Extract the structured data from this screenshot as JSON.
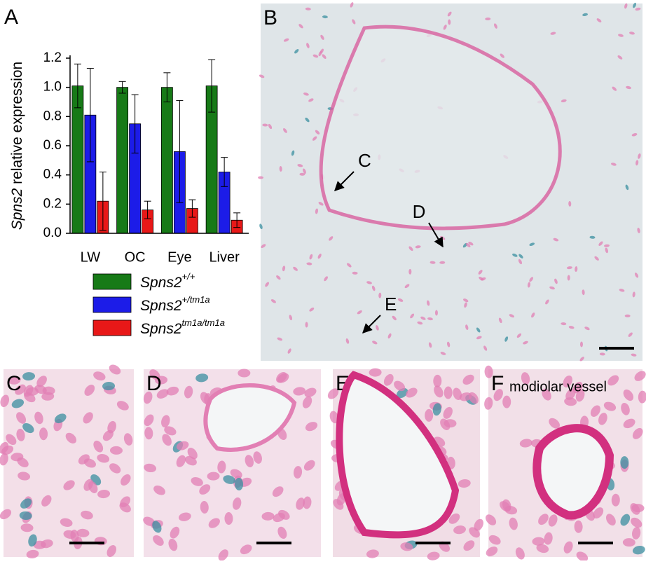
{
  "chart_data": {
    "type": "bar",
    "panel_label": "A",
    "y_label": "Spns2 relative expression",
    "categories": [
      "LW",
      "OC",
      "Eye",
      "Liver"
    ],
    "series": [
      {
        "name": "Spns2+/+",
        "color": "#177a17",
        "values": [
          1.01,
          1.0,
          1.0,
          1.01
        ],
        "errors": [
          0.15,
          0.04,
          0.1,
          0.18
        ]
      },
      {
        "name": "Spns2+/tm1a",
        "color": "#1c1ce8",
        "values": [
          0.81,
          0.75,
          0.56,
          0.42
        ],
        "errors": [
          0.32,
          0.2,
          0.35,
          0.1
        ]
      },
      {
        "name": "Spns2tm1a/tm1a",
        "color": "#e81818",
        "values": [
          0.22,
          0.16,
          0.17,
          0.09
        ],
        "errors": [
          0.2,
          0.06,
          0.06,
          0.05
        ]
      }
    ],
    "ylim": [
      0,
      1.2
    ],
    "yticks": [
      {
        "value": 0,
        "label": "0.0"
      },
      0.2,
      0.4,
      0.6,
      0.8,
      {
        "value": 1,
        "label": "1.0"
      },
      1.2
    ],
    "legend": "bottom"
  },
  "figure": {
    "panel_labels": [
      "B",
      "C",
      "D",
      "E",
      "F"
    ],
    "b_arrows": [
      "C",
      "D",
      "E"
    ],
    "f_caption": "modiolar vessel"
  }
}
